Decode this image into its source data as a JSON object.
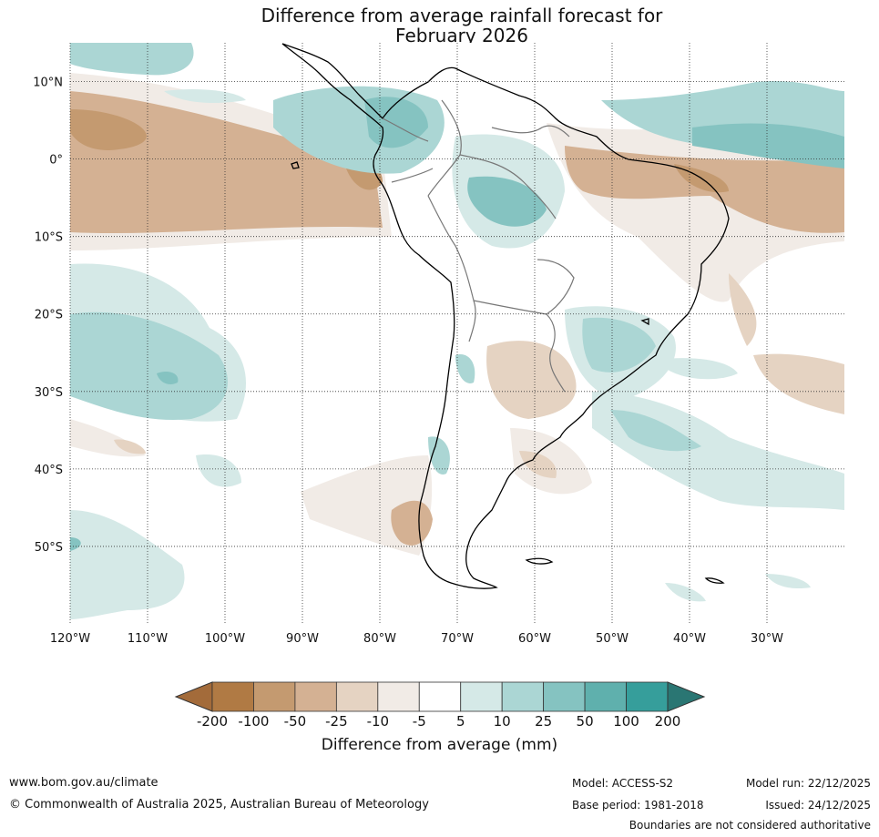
{
  "title_line1": "Difference from average rainfall forecast for",
  "title_line2": "February 2026",
  "lat_labels": [
    "10°N",
    "0°",
    "10°S",
    "20°S",
    "30°S",
    "40°S",
    "50°S"
  ],
  "lat_values": [
    10,
    0,
    -10,
    -20,
    -30,
    -40,
    -50
  ],
  "lon_labels": [
    "120°W",
    "110°W",
    "100°W",
    "90°W",
    "80°W",
    "70°W",
    "60°W",
    "50°W",
    "40°W",
    "30°W"
  ],
  "lon_values": [
    -120,
    -110,
    -100,
    -90,
    -80,
    -70,
    -60,
    -50,
    -40,
    -30
  ],
  "map_extent": {
    "lon_min": -120,
    "lon_max": -20,
    "lat_min": -60,
    "lat_max": 15
  },
  "colorbar": {
    "ticks": [
      "-200",
      "-100",
      "-50",
      "-25",
      "-10",
      "-5",
      "5",
      "10",
      "25",
      "50",
      "100",
      "200"
    ],
    "colors": [
      "#a36b3a",
      "#b07a44",
      "#c49a70",
      "#d4b193",
      "#e5d3c2",
      "#f1ebe6",
      "#ffffff",
      "#d5e9e7",
      "#abd6d4",
      "#85c3c1",
      "#5fb0ad",
      "#369e9b",
      "#2a7673"
    ],
    "label": "Difference from average (mm)"
  },
  "footer": {
    "url": "www.bom.gov.au/climate",
    "copyright": "© Commonwealth of Australia 2025, Australian Bureau of Meteorology",
    "model": "Model: ACCESS-S2",
    "base_period": "Base period: 1981-2018",
    "model_run": "Model run: 22/12/2025",
    "issued": "Issued: 24/12/2025",
    "disclaimer": "Boundaries are not considered authoritative"
  }
}
